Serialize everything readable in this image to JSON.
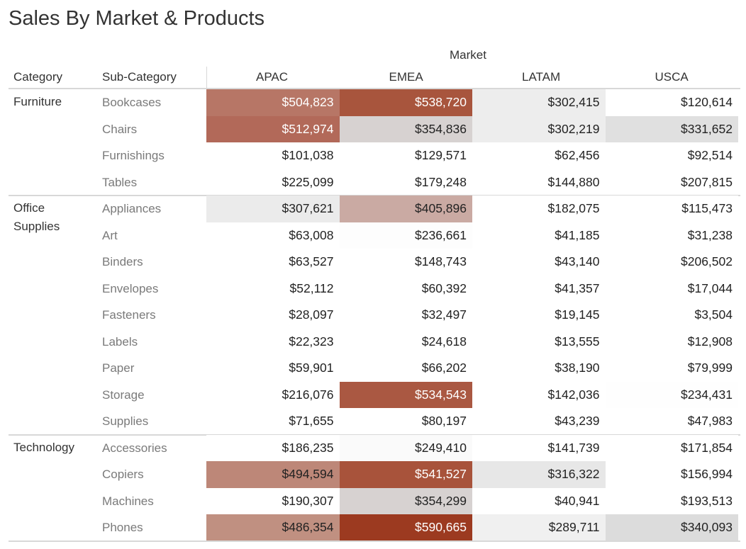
{
  "title": "Sales By Market & Products",
  "chart_data": {
    "type": "table",
    "title": "Sales By Market & Products",
    "column_group_label": "Market",
    "row_headers": [
      "Category",
      "Sub-Category"
    ],
    "columns": [
      "APAC",
      "EMEA",
      "LATAM",
      "USCA"
    ],
    "color_scale": {
      "low": "#ffffff",
      "mid": "#d9d9d9",
      "high": "#9c3a20"
    },
    "groups": [
      {
        "category": "Furniture",
        "rows": [
          {
            "sub": "Bookcases",
            "values": [
              "$504,823",
              "$538,720",
              "$302,415",
              "$120,614"
            ]
          },
          {
            "sub": "Chairs",
            "values": [
              "$512,974",
              "$354,836",
              "$302,219",
              "$331,652"
            ]
          },
          {
            "sub": "Furnishings",
            "values": [
              "$101,038",
              "$129,571",
              "$62,456",
              "$92,514"
            ]
          },
          {
            "sub": "Tables",
            "values": [
              "$225,099",
              "$179,248",
              "$144,880",
              "$207,815"
            ]
          }
        ]
      },
      {
        "category": "Office Supplies",
        "rows": [
          {
            "sub": "Appliances",
            "values": [
              "$307,621",
              "$405,896",
              "$182,075",
              "$115,473"
            ]
          },
          {
            "sub": "Art",
            "values": [
              "$63,008",
              "$236,661",
              "$41,185",
              "$31,238"
            ]
          },
          {
            "sub": "Binders",
            "values": [
              "$63,527",
              "$148,743",
              "$43,140",
              "$206,502"
            ]
          },
          {
            "sub": "Envelopes",
            "values": [
              "$52,112",
              "$60,392",
              "$41,357",
              "$17,044"
            ]
          },
          {
            "sub": "Fasteners",
            "values": [
              "$28,097",
              "$32,497",
              "$19,145",
              "$3,504"
            ]
          },
          {
            "sub": "Labels",
            "values": [
              "$22,323",
              "$24,618",
              "$13,555",
              "$12,908"
            ]
          },
          {
            "sub": "Paper",
            "values": [
              "$59,901",
              "$66,202",
              "$38,190",
              "$79,999"
            ]
          },
          {
            "sub": "Storage",
            "values": [
              "$216,076",
              "$534,543",
              "$142,036",
              "$234,431"
            ]
          },
          {
            "sub": "Supplies",
            "values": [
              "$71,655",
              "$80,197",
              "$43,239",
              "$47,983"
            ]
          }
        ]
      },
      {
        "category": "Technology",
        "rows": [
          {
            "sub": "Accessories",
            "values": [
              "$186,235",
              "$249,410",
              "$141,739",
              "$171,854"
            ]
          },
          {
            "sub": "Copiers",
            "values": [
              "$494,594",
              "$541,527",
              "$316,322",
              "$156,994"
            ]
          },
          {
            "sub": "Machines",
            "values": [
              "$190,307",
              "$354,299",
              "$40,941",
              "$193,513"
            ]
          },
          {
            "sub": "Phones",
            "values": [
              "$486,354",
              "$590,665",
              "$289,711",
              "$340,093"
            ]
          }
        ]
      }
    ]
  }
}
